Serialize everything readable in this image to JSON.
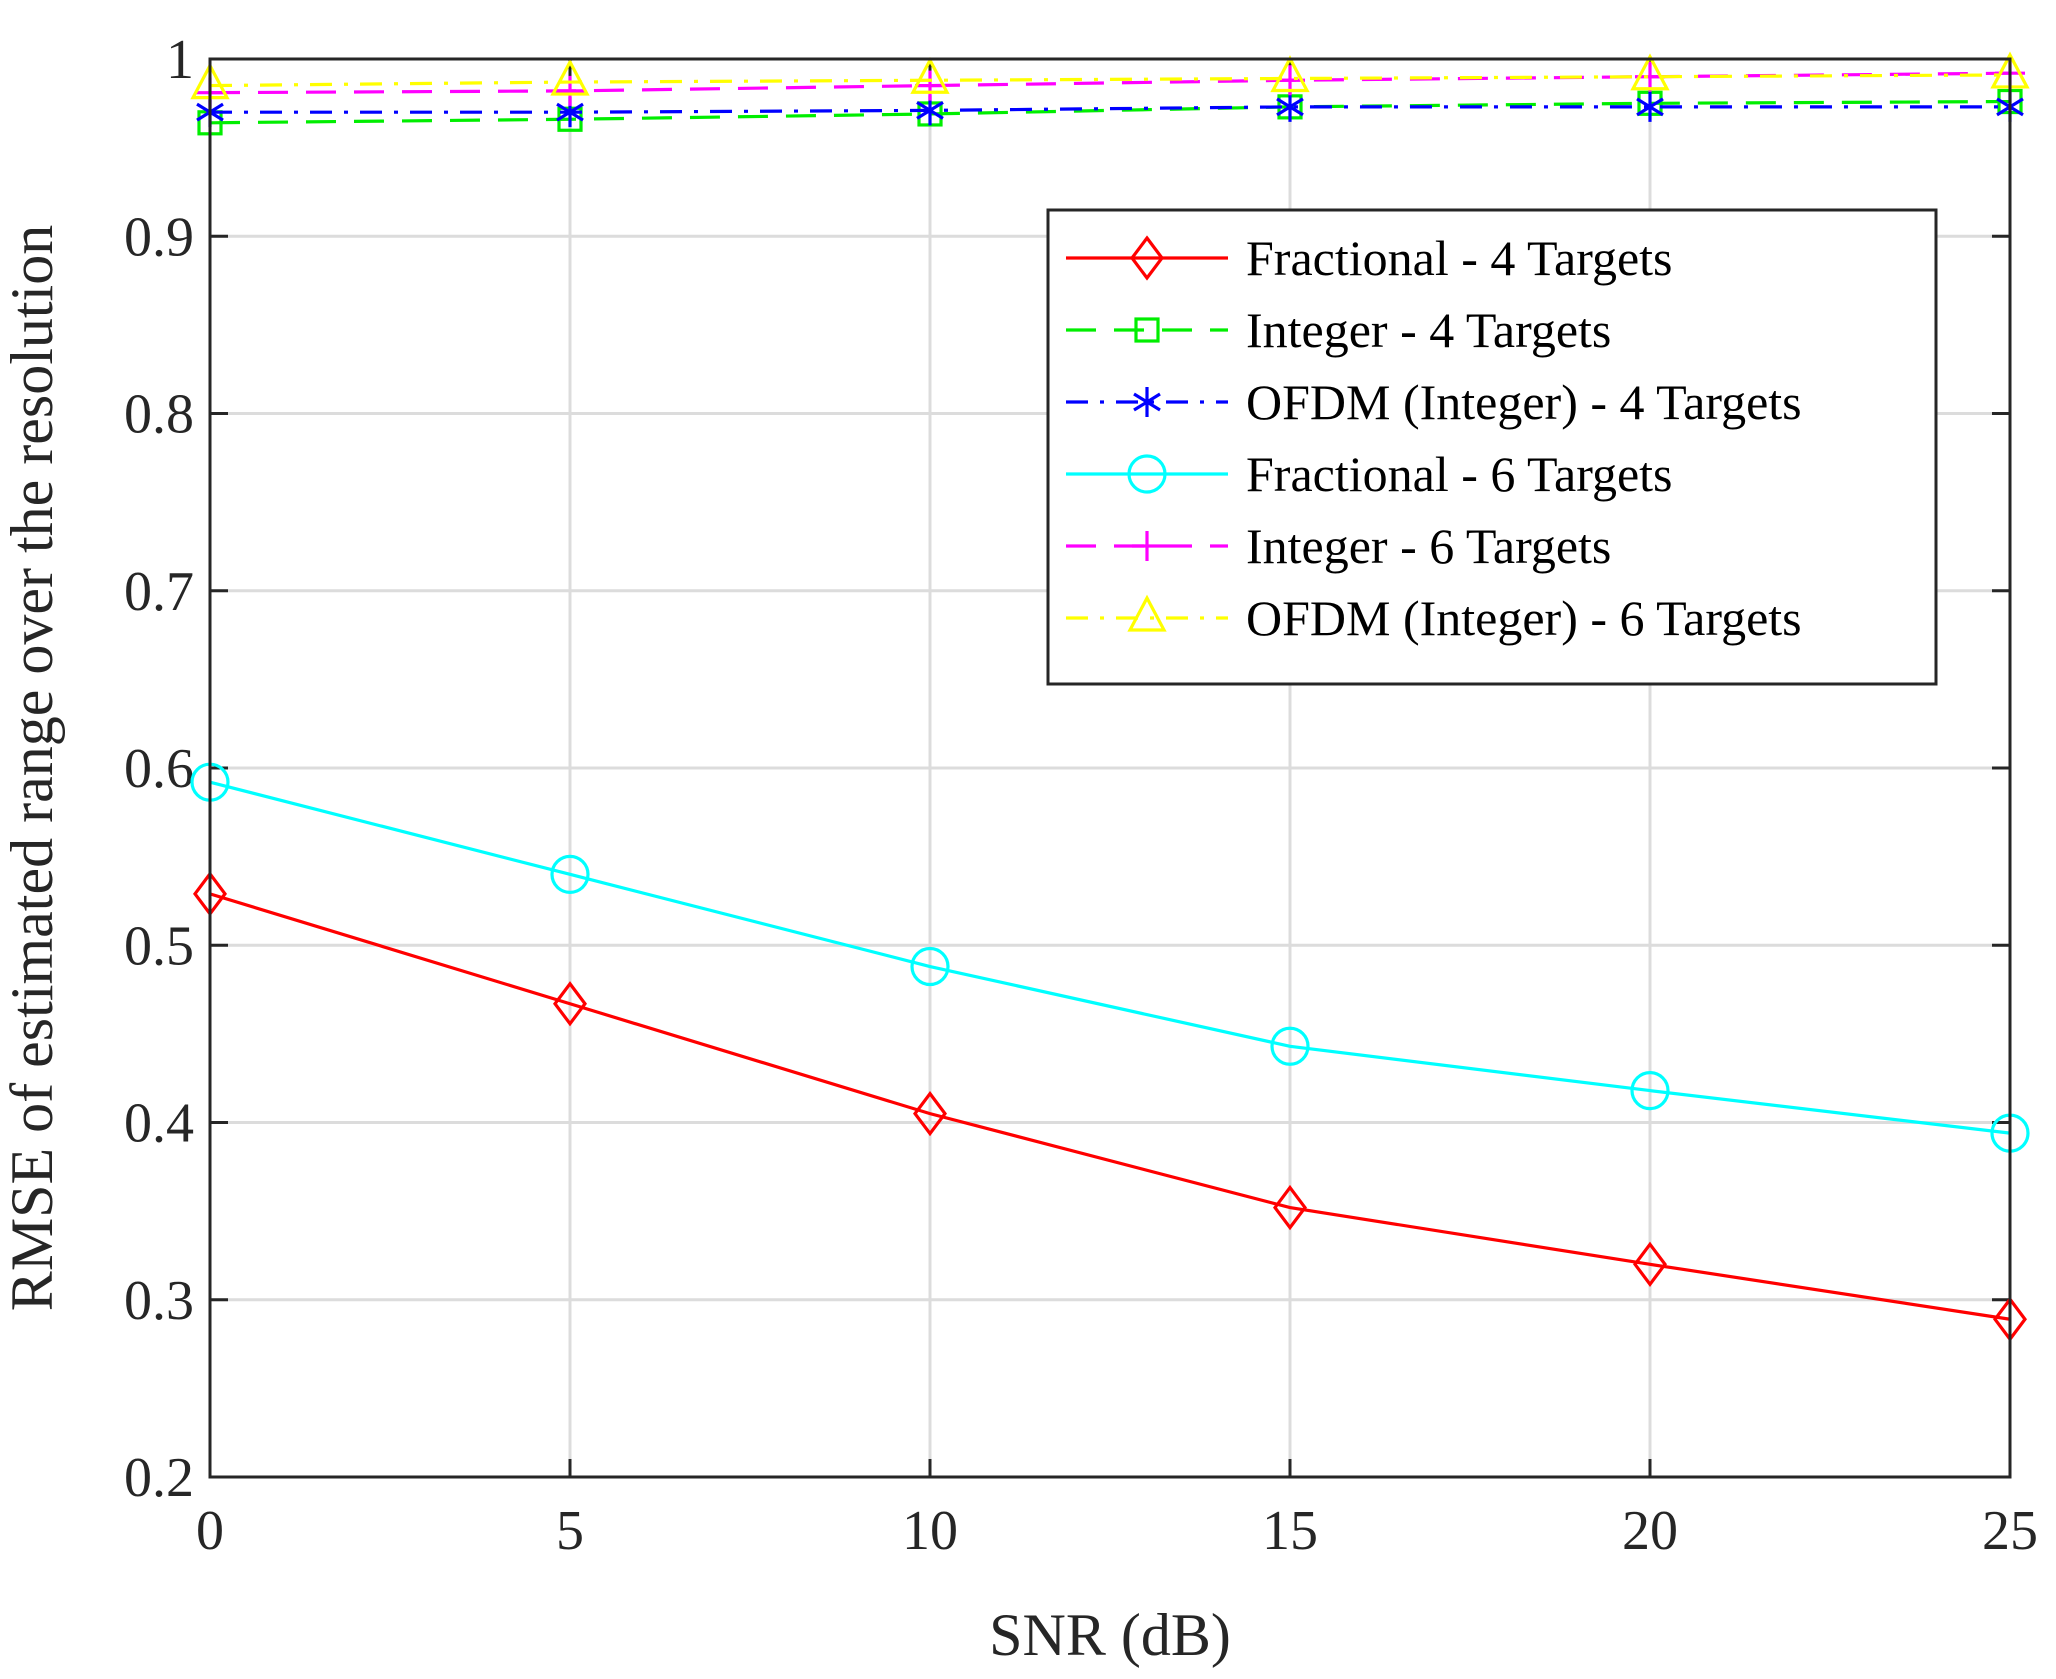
{
  "chart_data": {
    "type": "line",
    "title": "",
    "xlabel": "SNR (dB)",
    "ylabel": "RMSE of estimated range over the resolution",
    "x": [
      0,
      5,
      10,
      15,
      20,
      25
    ],
    "xlim": [
      0,
      25
    ],
    "ylim": [
      0.2,
      1.0
    ],
    "xticks": [
      0,
      5,
      10,
      15,
      20,
      25
    ],
    "xtick_labels": [
      "0",
      "5",
      "10",
      "15",
      "20",
      "25"
    ],
    "yticks": [
      0.2,
      0.3,
      0.4,
      0.5,
      0.6,
      0.7,
      0.8,
      0.9,
      1.0
    ],
    "ytick_labels": [
      "0.2",
      "0.3",
      "0.4",
      "0.5",
      "0.6",
      "0.7",
      "0.8",
      "0.9",
      "1"
    ],
    "grid": true,
    "legend_position": "top-right",
    "series": [
      {
        "name": "Fractional - 4 Targets",
        "color": "#ff0000",
        "dash": "solid",
        "marker": "diamond",
        "values": [
          0.529,
          0.467,
          0.405,
          0.352,
          0.32,
          0.289
        ]
      },
      {
        "name": "Integer - 4 Targets",
        "color": "#00ee00",
        "dash": "dashed",
        "marker": "square",
        "values": [
          0.964,
          0.966,
          0.969,
          0.973,
          0.975,
          0.976
        ]
      },
      {
        "name": "OFDM (Integer) - 4 Targets",
        "color": "#0000ff",
        "dash": "dashdot",
        "marker": "asterisk",
        "values": [
          0.97,
          0.97,
          0.971,
          0.973,
          0.973,
          0.973
        ]
      },
      {
        "name": "Fractional - 6 Targets",
        "color": "#00ffff",
        "dash": "solid",
        "marker": "circle",
        "values": [
          0.592,
          0.54,
          0.488,
          0.443,
          0.418,
          0.394
        ]
      },
      {
        "name": "Integer - 6 Targets",
        "color": "#ff00ff",
        "dash": "dashed",
        "marker": "plus",
        "values": [
          0.981,
          0.982,
          0.985,
          0.988,
          0.99,
          0.992
        ]
      },
      {
        "name": "OFDM (Integer) - 6 Targets",
        "color": "#ffff00",
        "dash": "dashdot",
        "marker": "triangle",
        "values": [
          0.985,
          0.987,
          0.988,
          0.989,
          0.99,
          0.991
        ]
      }
    ]
  }
}
